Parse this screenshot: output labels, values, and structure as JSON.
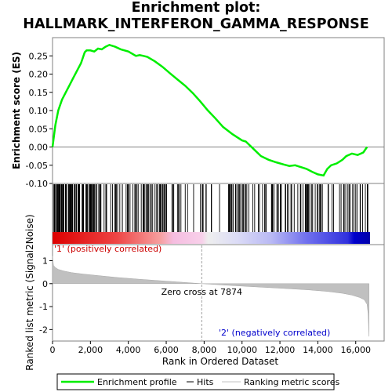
{
  "title_line1": "Enrichment plot:",
  "title_line2": "HALLMARK_INTERFERON_GAMMA_RESPONSE",
  "chart_data": {
    "type": "line",
    "top_panel": {
      "ylabel": "Enrichment score (ES)",
      "ylim": [
        -0.1,
        0.3
      ],
      "yticks": [
        -0.1,
        -0.05,
        0.0,
        0.05,
        0.1,
        0.15,
        0.2,
        0.25
      ],
      "ytick_labels": [
        "-0.10",
        "-0.05",
        "0.00",
        "0.05",
        "0.10",
        "0.15",
        "0.20",
        "0.25"
      ],
      "series": [
        {
          "name": "Enrichment profile",
          "color": "#00ee00",
          "x": [
            0,
            150,
            300,
            500,
            700,
            900,
            1100,
            1300,
            1500,
            1700,
            1800,
            2000,
            2200,
            2400,
            2600,
            2800,
            3000,
            3300,
            3600,
            4000,
            4400,
            4600,
            4800,
            5000,
            5400,
            5800,
            6200,
            6600,
            7000,
            7400,
            7800,
            8200,
            8600,
            9000,
            9500,
            10000,
            10200,
            10600,
            11000,
            11400,
            11800,
            12200,
            12500,
            12800,
            13100,
            13400,
            13700,
            14000,
            14300,
            14500,
            14700,
            15000,
            15300,
            15500,
            15800,
            16100,
            16400,
            16600
          ],
          "y": [
            0.0,
            0.06,
            0.1,
            0.13,
            0.15,
            0.17,
            0.19,
            0.21,
            0.23,
            0.26,
            0.265,
            0.265,
            0.262,
            0.27,
            0.268,
            0.275,
            0.28,
            0.275,
            0.268,
            0.262,
            0.25,
            0.252,
            0.25,
            0.247,
            0.235,
            0.22,
            0.202,
            0.185,
            0.168,
            0.148,
            0.125,
            0.1,
            0.078,
            0.055,
            0.035,
            0.018,
            0.015,
            -0.005,
            -0.025,
            -0.035,
            -0.042,
            -0.048,
            -0.052,
            -0.05,
            -0.055,
            -0.06,
            -0.068,
            -0.075,
            -0.078,
            -0.06,
            -0.05,
            -0.045,
            -0.035,
            -0.025,
            -0.018,
            -0.022,
            -0.015,
            0.0
          ]
        }
      ]
    },
    "hits_panel": {
      "legend": "Hits",
      "hit_density": [
        {
          "start": 0,
          "end": 2100,
          "count": 85
        },
        {
          "start": 2100,
          "end": 4800,
          "count": 38
        },
        {
          "start": 4800,
          "end": 7300,
          "count": 35
        },
        {
          "start": 7300,
          "end": 8500,
          "count": 10
        },
        {
          "start": 8700,
          "end": 10200,
          "count": 22
        },
        {
          "start": 10200,
          "end": 11200,
          "count": 8
        },
        {
          "start": 11200,
          "end": 13300,
          "count": 24
        },
        {
          "start": 13300,
          "end": 15000,
          "count": 22
        },
        {
          "start": 15000,
          "end": 16700,
          "count": 20
        }
      ],
      "heatmap_label_pos": "'1' (positively correlated)",
      "heatmap_label_neg": "'2' (negatively correlated)"
    },
    "bottom_panel": {
      "ylabel": "Ranked list metric (Signal2Noise)",
      "xlabel": "Rank in Ordered Dataset",
      "ylim": [
        -2.5,
        1.7
      ],
      "yticks": [
        1,
        0,
        -1,
        -2
      ],
      "xlim": [
        0,
        17500
      ],
      "xticks": [
        0,
        2000,
        4000,
        6000,
        8000,
        10000,
        12000,
        14000,
        16000
      ],
      "xtick_labels": [
        "0",
        "2,000",
        "4,000",
        "6,000",
        "8,000",
        "10,000",
        "12,000",
        "14,000",
        "16,000"
      ],
      "zero_cross_label": "Zero cross at 7874",
      "zero_cross": 7874,
      "n_genes": 16700,
      "series": [
        {
          "name": "Ranking metric scores",
          "color": "#c0c0c0",
          "x": [
            0,
            50,
            150,
            300,
            600,
            1000,
            1600,
            2400,
            3400,
            4600,
            6000,
            7000,
            7874,
            9000,
            10500,
            12000,
            13500,
            14500,
            15300,
            15800,
            16200,
            16450,
            16600,
            16650,
            16700
          ],
          "y": [
            1.2,
            0.8,
            0.7,
            0.62,
            0.55,
            0.48,
            0.42,
            0.35,
            0.27,
            0.19,
            0.11,
            0.05,
            0.0,
            -0.06,
            -0.13,
            -0.2,
            -0.27,
            -0.34,
            -0.42,
            -0.5,
            -0.6,
            -0.7,
            -0.9,
            -1.3,
            -2.3
          ]
        }
      ]
    }
  },
  "legend": {
    "items": [
      {
        "label": "Enrichment profile",
        "color": "#00ee00"
      },
      {
        "label": "Hits",
        "color": "#000000"
      },
      {
        "label": "Ranking metric scores",
        "color": "#c0c0c0"
      }
    ]
  }
}
